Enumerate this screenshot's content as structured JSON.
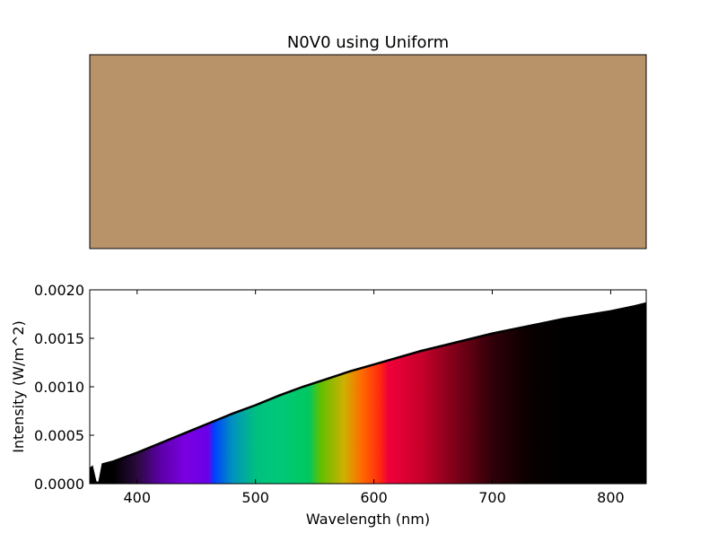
{
  "chart_data": [
    {
      "type": "color_swatch",
      "title": "N0V0 using Uniform",
      "swatch_color": "#b8936a"
    },
    {
      "type": "area",
      "title": "",
      "xlabel": "Wavelength (nm)",
      "ylabel": "Intensity (W/m^2)",
      "xlim": [
        360,
        830
      ],
      "ylim": [
        0,
        0.002
      ],
      "x_ticks": [
        400,
        500,
        600,
        700,
        800
      ],
      "x_tick_labels": [
        "400",
        "500",
        "600",
        "700",
        "800"
      ],
      "y_ticks": [
        0,
        0.0005,
        0.001,
        0.0015,
        0.002
      ],
      "y_tick_labels": [
        "0.0000",
        "0.0005",
        "0.0010",
        "0.0015",
        "0.0020"
      ],
      "fill": "visible spectrum colors by wavelength",
      "grid": false,
      "series": [
        {
          "x": [
            360,
            362,
            365,
            368,
            371,
            380,
            400,
            420,
            440,
            460,
            480,
            500,
            520,
            540,
            560,
            580,
            600,
            620,
            640,
            660,
            680,
            700,
            720,
            740,
            760,
            780,
            800,
            820,
            830
          ],
          "y": [
            0.00015,
            0.00017,
            1e-05,
            1e-05,
            0.0002,
            0.00023,
            0.00032,
            0.00042,
            0.00052,
            0.00062,
            0.00072,
            0.00081,
            0.00091,
            0.001,
            0.00108,
            0.00116,
            0.00123,
            0.0013,
            0.00137,
            0.00143,
            0.00149,
            0.00155,
            0.0016,
            0.00165,
            0.0017,
            0.00174,
            0.00178,
            0.00183,
            0.00186
          ]
        }
      ]
    }
  ]
}
